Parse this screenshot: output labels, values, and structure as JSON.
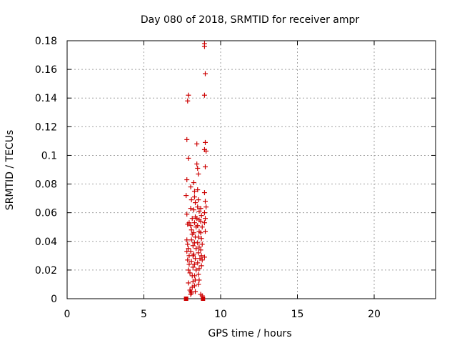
{
  "chart_data": {
    "type": "scatter",
    "title": "Day 080 of 2018, SRMTID for receiver ampr",
    "xlabel": "GPS time / hours",
    "ylabel": "SRMTID / TECUs",
    "xlim": [
      0,
      24
    ],
    "ylim": [
      0,
      0.18
    ],
    "xticks": [
      "0",
      "5",
      "10",
      "15",
      "20"
    ],
    "yticks": [
      "0",
      "0.02",
      "0.04",
      "0.06",
      "0.08",
      "0.1",
      "0.12",
      "0.14",
      "0.16",
      "0.18"
    ],
    "grid": true,
    "marker": "+",
    "color": "#cc0000",
    "series": [
      {
        "points": [
          [
            7.75,
            0.072
          ],
          [
            7.8,
            0.083
          ],
          [
            7.8,
            0.111
          ],
          [
            7.85,
            0.138
          ],
          [
            7.9,
            0.142
          ],
          [
            7.9,
            0.098
          ],
          [
            7.8,
            0.059
          ],
          [
            7.85,
            0.052
          ],
          [
            7.95,
            0.053
          ],
          [
            8.05,
            0.051
          ],
          [
            7.8,
            0.041
          ],
          [
            7.85,
            0.038
          ],
          [
            7.9,
            0.035
          ],
          [
            7.8,
            0.033
          ],
          [
            7.95,
            0.03
          ],
          [
            7.85,
            0.027
          ],
          [
            7.95,
            0.024
          ],
          [
            7.9,
            0.02
          ],
          [
            8.0,
            0.018
          ],
          [
            7.9,
            0.011
          ],
          [
            8.0,
            0.006
          ],
          [
            8.05,
            0.003
          ],
          [
            8.05,
            0.005
          ],
          [
            8.1,
            0.004
          ],
          [
            8.15,
            0.008
          ],
          [
            8.05,
            0.078
          ],
          [
            8.1,
            0.069
          ],
          [
            8.05,
            0.063
          ],
          [
            8.15,
            0.056
          ],
          [
            8.1,
            0.048
          ],
          [
            8.15,
            0.045
          ],
          [
            8.1,
            0.041
          ],
          [
            8.2,
            0.037
          ],
          [
            8.05,
            0.033
          ],
          [
            8.2,
            0.03
          ],
          [
            8.1,
            0.026
          ],
          [
            8.2,
            0.022
          ],
          [
            8.15,
            0.016
          ],
          [
            8.2,
            0.012
          ],
          [
            8.25,
            0.081
          ],
          [
            8.3,
            0.075
          ],
          [
            8.3,
            0.071
          ],
          [
            8.35,
            0.067
          ],
          [
            8.25,
            0.062
          ],
          [
            8.35,
            0.057
          ],
          [
            8.3,
            0.053
          ],
          [
            8.4,
            0.05
          ],
          [
            8.25,
            0.046
          ],
          [
            8.35,
            0.043
          ],
          [
            8.3,
            0.039
          ],
          [
            8.4,
            0.035
          ],
          [
            8.25,
            0.031
          ],
          [
            8.35,
            0.028
          ],
          [
            8.3,
            0.024
          ],
          [
            8.4,
            0.02
          ],
          [
            8.3,
            0.016
          ],
          [
            8.35,
            0.013
          ],
          [
            8.3,
            0.009
          ],
          [
            8.35,
            0.005
          ],
          [
            8.45,
            0.108
          ],
          [
            8.45,
            0.094
          ],
          [
            8.5,
            0.091
          ],
          [
            8.55,
            0.087
          ],
          [
            8.5,
            0.076
          ],
          [
            8.55,
            0.069
          ],
          [
            8.5,
            0.064
          ],
          [
            8.6,
            0.061
          ],
          [
            8.45,
            0.056
          ],
          [
            8.6,
            0.055
          ],
          [
            8.5,
            0.051
          ],
          [
            8.6,
            0.047
          ],
          [
            8.55,
            0.043
          ],
          [
            8.5,
            0.039
          ],
          [
            8.6,
            0.036
          ],
          [
            8.55,
            0.032
          ],
          [
            8.65,
            0.028
          ],
          [
            8.5,
            0.025
          ],
          [
            8.6,
            0.021
          ],
          [
            8.55,
            0.017
          ],
          [
            8.6,
            0.013
          ],
          [
            8.55,
            0.01
          ],
          [
            8.7,
            0.063
          ],
          [
            8.75,
            0.058
          ],
          [
            8.7,
            0.054
          ],
          [
            8.8,
            0.05
          ],
          [
            8.7,
            0.046
          ],
          [
            8.75,
            0.042
          ],
          [
            8.8,
            0.038
          ],
          [
            8.7,
            0.034
          ],
          [
            8.75,
            0.03
          ],
          [
            8.8,
            0.027
          ],
          [
            8.75,
            0.023
          ],
          [
            8.7,
            0.003
          ],
          [
            8.8,
            0.002
          ],
          [
            8.95,
            0.178
          ],
          [
            8.95,
            0.176
          ],
          [
            9.0,
            0.157
          ],
          [
            8.95,
            0.142
          ],
          [
            9.0,
            0.109
          ],
          [
            8.95,
            0.104
          ],
          [
            9.05,
            0.103
          ],
          [
            9.0,
            0.092
          ],
          [
            8.95,
            0.074
          ],
          [
            9.0,
            0.068
          ],
          [
            9.05,
            0.064
          ],
          [
            8.95,
            0.06
          ],
          [
            9.0,
            0.056
          ],
          [
            8.95,
            0.053
          ],
          [
            9.0,
            0.047
          ],
          [
            8.95,
            0.029
          ]
        ]
      }
    ],
    "zero_markers": [
      7.75,
      8.85
    ]
  }
}
